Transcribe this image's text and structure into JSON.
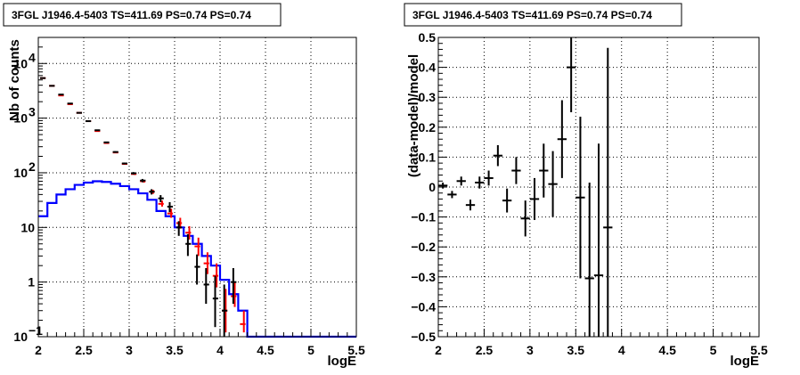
{
  "chart_data": [
    {
      "type": "histogram",
      "title": "3FGL J1946.4-5403 TS=411.69 PS=0.74 PS=0.74",
      "xlabel": "logE",
      "ylabel": "Nb of counts",
      "xlim": [
        2,
        5.5
      ],
      "ylim": [
        0.1,
        30000
      ],
      "yscale": "log",
      "grid": true,
      "x_ticks": [
        "2",
        "2.5",
        "3",
        "3.5",
        "4",
        "4.5",
        "5",
        "5.5"
      ],
      "y_ticks": [
        {
          "value": 0.1,
          "label": "10",
          "exp": "−1"
        },
        {
          "value": 1,
          "label": "1",
          "exp": ""
        },
        {
          "value": 10,
          "label": "10",
          "exp": ""
        },
        {
          "value": 100,
          "label": "10",
          "exp": "2"
        },
        {
          "value": 1000,
          "label": "10",
          "exp": "3"
        },
        {
          "value": 10000,
          "label": "10",
          "exp": "4"
        }
      ],
      "bin_edges": [
        2.0,
        2.1,
        2.2,
        2.3,
        2.4,
        2.5,
        2.6,
        2.7,
        2.8,
        2.9,
        3.0,
        3.1,
        3.2,
        3.3,
        3.4,
        3.5,
        3.6,
        3.7,
        3.8,
        3.9,
        4.0,
        4.1,
        4.2,
        4.3,
        4.4,
        4.5,
        4.6,
        4.7,
        4.8,
        4.9,
        5.0,
        5.1,
        5.2,
        5.3,
        5.4,
        5.5
      ],
      "series": [
        {
          "name": "",
          "kind": "step",
          "color": "#0000ff",
          "values": [
            16,
            28,
            40,
            50,
            60,
            66,
            70,
            68,
            63,
            57,
            50,
            42,
            32,
            20,
            16,
            10,
            7,
            5,
            3,
            2,
            1.1,
            0.6,
            0.3,
            0.1,
            0.1,
            0.1,
            0.1,
            0.1,
            0.1,
            0.1,
            0.1,
            0.1,
            0.1,
            0.1,
            0.1
          ]
        },
        {
          "name": "",
          "kind": "points",
          "color": "#ff0000",
          "x": [
            2.05,
            2.15,
            2.25,
            2.35,
            2.45,
            2.55,
            2.65,
            2.75,
            2.85,
            2.95,
            3.05,
            3.15,
            3.25,
            3.35,
            3.45,
            3.55,
            3.65,
            3.75,
            3.85,
            3.95,
            4.05,
            4.15,
            4.25
          ],
          "y": [
            5400,
            3900,
            2600,
            1800,
            1250,
            880,
            580,
            350,
            235,
            145,
            95,
            70,
            45,
            27,
            18,
            12,
            8,
            4.5,
            2.2,
            1.3,
            0.3,
            0.55,
            0.17
          ],
          "yerr_lo": [
            5250,
            3800,
            2540,
            1760,
            1220,
            860,
            565,
            340,
            228,
            140,
            91,
            66,
            41,
            24,
            15,
            9.5,
            6,
            3,
            1.4,
            0.8,
            0.12,
            0.35,
            0.12
          ],
          "yerr_hi": [
            5550,
            4000,
            2660,
            1840,
            1280,
            900,
            595,
            360,
            242,
            150,
            99,
            74,
            49,
            31,
            22,
            15,
            10.5,
            6.5,
            3.5,
            2.2,
            0.75,
            1.0,
            0.3
          ]
        },
        {
          "name": "",
          "kind": "points",
          "color": "#000000",
          "x": [
            2.05,
            2.15,
            2.25,
            2.35,
            2.45,
            2.55,
            2.65,
            2.75,
            2.85,
            2.95,
            3.05,
            3.15,
            3.25,
            3.35,
            3.45,
            3.55,
            3.65,
            3.75,
            3.85,
            3.95,
            4.05,
            4.15
          ],
          "y": [
            5400,
            3900,
            2700,
            1850,
            1250,
            880,
            600,
            360,
            240,
            148,
            98,
            72,
            45,
            34,
            24,
            10,
            5,
            1.9,
            0.9,
            0.5,
            0.3,
            1.0
          ],
          "yerr_lo": [
            5250,
            3800,
            2640,
            1800,
            1220,
            860,
            585,
            350,
            232,
            142,
            93,
            67,
            40,
            29,
            19,
            7,
            3,
            0.9,
            0.4,
            0.15,
            0.1,
            0.4
          ],
          "yerr_hi": [
            5550,
            4000,
            2760,
            1900,
            1280,
            900,
            615,
            370,
            248,
            154,
            103,
            77,
            50,
            39,
            29,
            13,
            7.5,
            3.2,
            1.8,
            1.3,
            0.9,
            1.8
          ]
        }
      ]
    },
    {
      "type": "scatter",
      "title": "3FGL J1946.4-5403 TS=411.69 PS=0.74 PS=0.74",
      "xlabel": "logE",
      "ylabel": "(data-model)/model",
      "xlim": [
        2,
        5.5
      ],
      "ylim": [
        -0.5,
        0.5
      ],
      "grid": true,
      "x_ticks": [
        "2",
        "2.5",
        "3",
        "3.5",
        "4",
        "4.5",
        "5",
        "5.5"
      ],
      "y_ticks": [
        "−0.5",
        "−0.4",
        "−0.3",
        "−0.2",
        "−0.1",
        "0",
        "0.1",
        "0.2",
        "0.3",
        "0.4",
        "0.5"
      ],
      "series": [
        {
          "name": "",
          "color": "#000000",
          "x": [
            2.05,
            2.15,
            2.25,
            2.35,
            2.45,
            2.55,
            2.65,
            2.75,
            2.85,
            2.95,
            3.05,
            3.15,
            3.25,
            3.35,
            3.45,
            3.55,
            3.65,
            3.75,
            3.85
          ],
          "y": [
            0.005,
            -0.025,
            0.02,
            -0.06,
            0.015,
            0.03,
            0.105,
            -0.045,
            0.055,
            -0.105,
            -0.04,
            0.055,
            0.01,
            0.16,
            0.4,
            -0.035,
            -0.305,
            -0.295,
            -0.135
          ],
          "yerr": [
            0.01,
            0.012,
            0.015,
            0.018,
            0.02,
            0.025,
            0.035,
            0.04,
            0.045,
            0.06,
            0.07,
            0.09,
            0.11,
            0.13,
            0.15,
            0.27,
            0.32,
            0.44,
            0.6
          ]
        }
      ]
    }
  ]
}
